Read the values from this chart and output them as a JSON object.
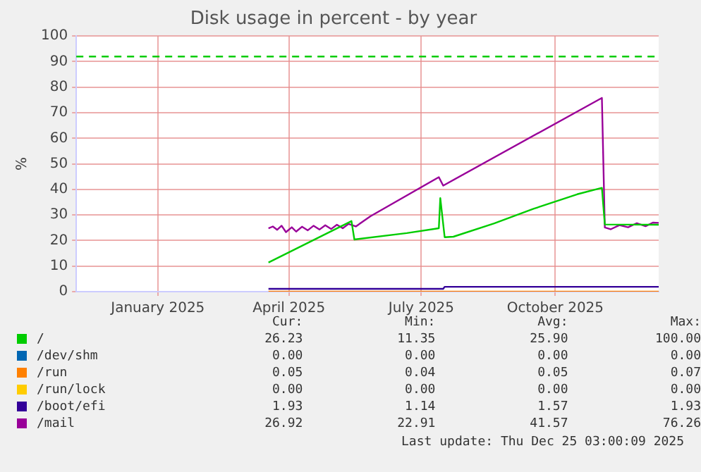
{
  "chart_data": {
    "type": "line",
    "title": "Disk usage in percent - by year",
    "ylabel": "%",
    "xlim": [
      "2024-11-20",
      "2025-12-25"
    ],
    "xticks": [
      {
        "value": "2025-01-15",
        "label": "January 2025"
      },
      {
        "value": "2025-04-15",
        "label": "April 2025"
      },
      {
        "value": "2025-07-15",
        "label": "July 2025"
      },
      {
        "value": "2025-10-15",
        "label": "October 2025"
      }
    ],
    "ylim": [
      0,
      100
    ],
    "yticks": [
      0,
      10,
      20,
      30,
      40,
      50,
      60,
      70,
      80,
      90,
      100
    ],
    "grid": true,
    "legend": "bottom",
    "marker": "none",
    "line_style": "solid",
    "ref_lines": [
      {
        "axis": "y",
        "value": 92,
        "color": "#00cc00",
        "line_style": "dashed"
      }
    ],
    "series": [
      {
        "name": "/",
        "color": "#00cc00",
        "x": [
          "2025-04-01",
          "2025-05-28",
          "2025-05-30",
          "2025-07-05",
          "2025-07-27",
          "2025-07-28",
          "2025-07-31",
          "2025-08-06",
          "2025-09-03",
          "2025-09-30",
          "2025-10-30",
          "2025-11-16",
          "2025-11-18",
          "2025-12-25"
        ],
        "values": [
          11.4,
          27.6,
          20.4,
          22.9,
          24.8,
          36.6,
          21.3,
          21.5,
          26.7,
          32.4,
          38.1,
          40.6,
          26.3,
          26.2
        ]
      },
      {
        "name": "/dev/shm",
        "color": "#0066b3"
      },
      {
        "name": "/run",
        "color": "#ff8000",
        "x": [
          "2025-04-01",
          "2025-12-25"
        ],
        "values": [
          0,
          0
        ]
      },
      {
        "name": "/run/lock",
        "color": "#ffcc00"
      },
      {
        "name": "/boot/efi",
        "color": "#330099",
        "x": [
          "2025-04-01",
          "2025-07-30",
          "2025-07-31",
          "2025-12-25"
        ],
        "values": [
          1.1,
          1.1,
          1.9,
          1.9
        ]
      },
      {
        "name": "/mail",
        "color": "#990099",
        "x": [
          "2025-04-01",
          "2025-04-04",
          "2025-04-07",
          "2025-04-10",
          "2025-04-13",
          "2025-04-17",
          "2025-04-20",
          "2025-04-24",
          "2025-04-28",
          "2025-05-02",
          "2025-05-06",
          "2025-05-10",
          "2025-05-14",
          "2025-05-18",
          "2025-05-22",
          "2025-05-26",
          "2025-05-31",
          "2025-06-10",
          "2025-07-27",
          "2025-07-30",
          "2025-11-16",
          "2025-11-18",
          "2025-11-22",
          "2025-11-28",
          "2025-12-04",
          "2025-12-10",
          "2025-12-16",
          "2025-12-21",
          "2025-12-25"
        ],
        "values": [
          24.8,
          25.5,
          24.2,
          25.8,
          23.3,
          25.2,
          23.5,
          25.4,
          24,
          25.8,
          24.3,
          26,
          24.5,
          26.2,
          24.8,
          26.5,
          25.5,
          29.5,
          44.8,
          41.5,
          75.8,
          25.1,
          24.4,
          26,
          25.2,
          26.8,
          25.6,
          27,
          26.9
        ]
      }
    ],
    "annotations": [
      "Cur:",
      "Min:",
      "Avg:",
      "Max:",
      "26.23",
      "11.35",
      "25.90",
      "100.00",
      "0.00",
      "0.00",
      "0.00",
      "0.00",
      "0.05",
      "0.04",
      "0.05",
      "0.07",
      "0.00",
      "0.00",
      "0.00",
      "0.00",
      "1.93",
      "1.14",
      "1.57",
      "1.93",
      "26.92",
      "22.91",
      "41.57",
      "76.26",
      "Last update: Thu Dec 25 03:00:09 2025"
    ]
  }
}
